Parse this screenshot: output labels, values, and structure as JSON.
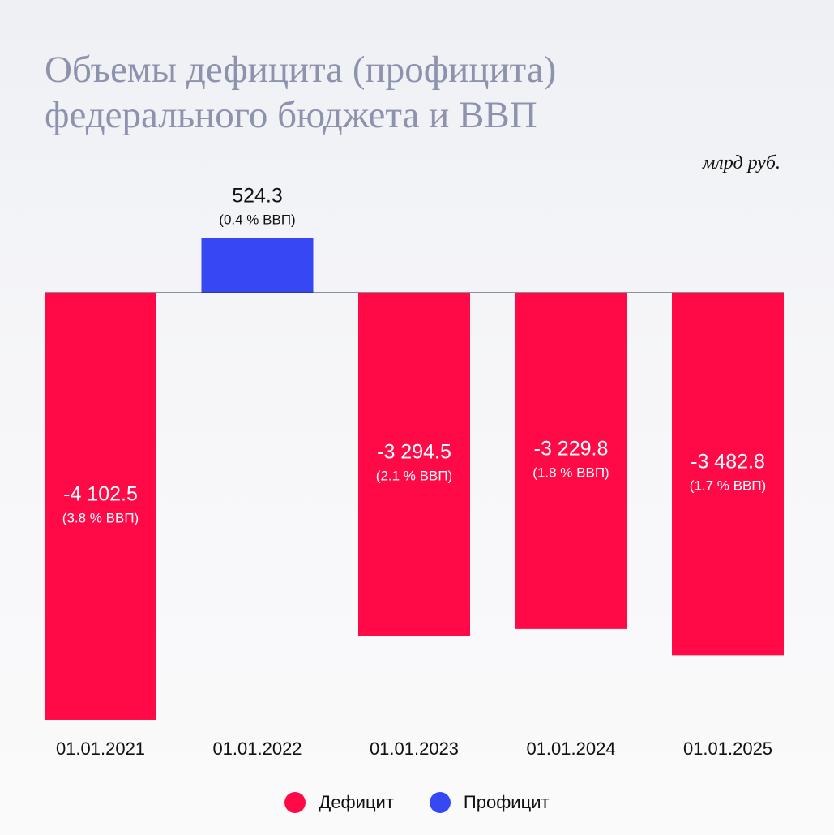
{
  "title_lines": [
    "Объемы дефицита (профицита)",
    "федерального бюджета и ВВП"
  ],
  "unit": "млрд руб.",
  "colors": {
    "deficit": "#ff0a47",
    "surplus": "#3548f3",
    "title": "#8e93ad"
  },
  "chart_data": {
    "type": "bar",
    "categories": [
      "01.01.2021",
      "01.01.2022",
      "01.01.2023",
      "01.01.2024",
      "01.01.2025"
    ],
    "values": [
      -4102.5,
      524.3,
      -3294.5,
      -3229.8,
      -3482.8
    ],
    "value_labels": [
      "-4 102.5",
      "524.3",
      "-3 294.5",
      "-3 229.8",
      "-3 482.8"
    ],
    "gdp_labels": [
      "(3.8 % ВВП)",
      "(0.4 % ВВП)",
      "(2.1 % ВВП)",
      "(1.8 % ВВП)",
      "(1.7 % ВВП)"
    ],
    "series_types": [
      "deficit",
      "surplus",
      "deficit",
      "deficit",
      "deficit"
    ],
    "ylim": [
      -4102.5,
      524.3
    ],
    "grid": false,
    "legend_position": "bottom-center",
    "legend": [
      {
        "key": "deficit",
        "label": "Дефицит"
      },
      {
        "key": "surplus",
        "label": "Профицит"
      }
    ]
  }
}
